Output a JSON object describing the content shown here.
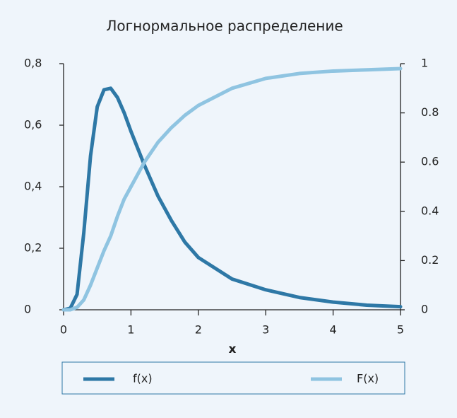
{
  "chart_data": {
    "type": "line",
    "title": "Логнормальное распределение",
    "xlabel": "x",
    "x": [
      0,
      0.1,
      0.2,
      0.3,
      0.4,
      0.5,
      0.6,
      0.7,
      0.8,
      0.9,
      1.0,
      1.2,
      1.4,
      1.6,
      1.8,
      2.0,
      2.5,
      3.0,
      3.5,
      4.0,
      4.5,
      5.0
    ],
    "series": [
      {
        "name": "f(x)",
        "color": "#2e78a6",
        "axis": "y",
        "values": [
          0,
          0.005,
          0.05,
          0.25,
          0.5,
          0.66,
          0.715,
          0.72,
          0.69,
          0.64,
          0.58,
          0.47,
          0.37,
          0.29,
          0.22,
          0.17,
          0.1,
          0.065,
          0.04,
          0.025,
          0.015,
          0.01
        ]
      },
      {
        "name": "F(x)",
        "color": "#8fc4e1",
        "axis": "y2",
        "values": [
          0,
          0.0,
          0.01,
          0.04,
          0.1,
          0.17,
          0.24,
          0.3,
          0.38,
          0.45,
          0.5,
          0.6,
          0.68,
          0.74,
          0.79,
          0.83,
          0.9,
          0.94,
          0.96,
          0.97,
          0.975,
          0.98
        ]
      }
    ],
    "xlim": [
      0,
      5
    ],
    "xticks": [
      0,
      1,
      2,
      3,
      4,
      5
    ],
    "ylim": [
      0,
      0.8
    ],
    "yticks": [
      0,
      {
        "value": 0.2,
        "label": "0,2"
      },
      {
        "value": 0.4,
        "label": "0,4"
      },
      {
        "value": 0.6,
        "label": "0,6"
      },
      {
        "value": 0.8,
        "label": "0,8"
      }
    ],
    "y2lim": [
      0,
      1
    ],
    "y2ticks": [
      0,
      0.2,
      0.4,
      0.6,
      0.8,
      1
    ],
    "legend": "bottom"
  }
}
